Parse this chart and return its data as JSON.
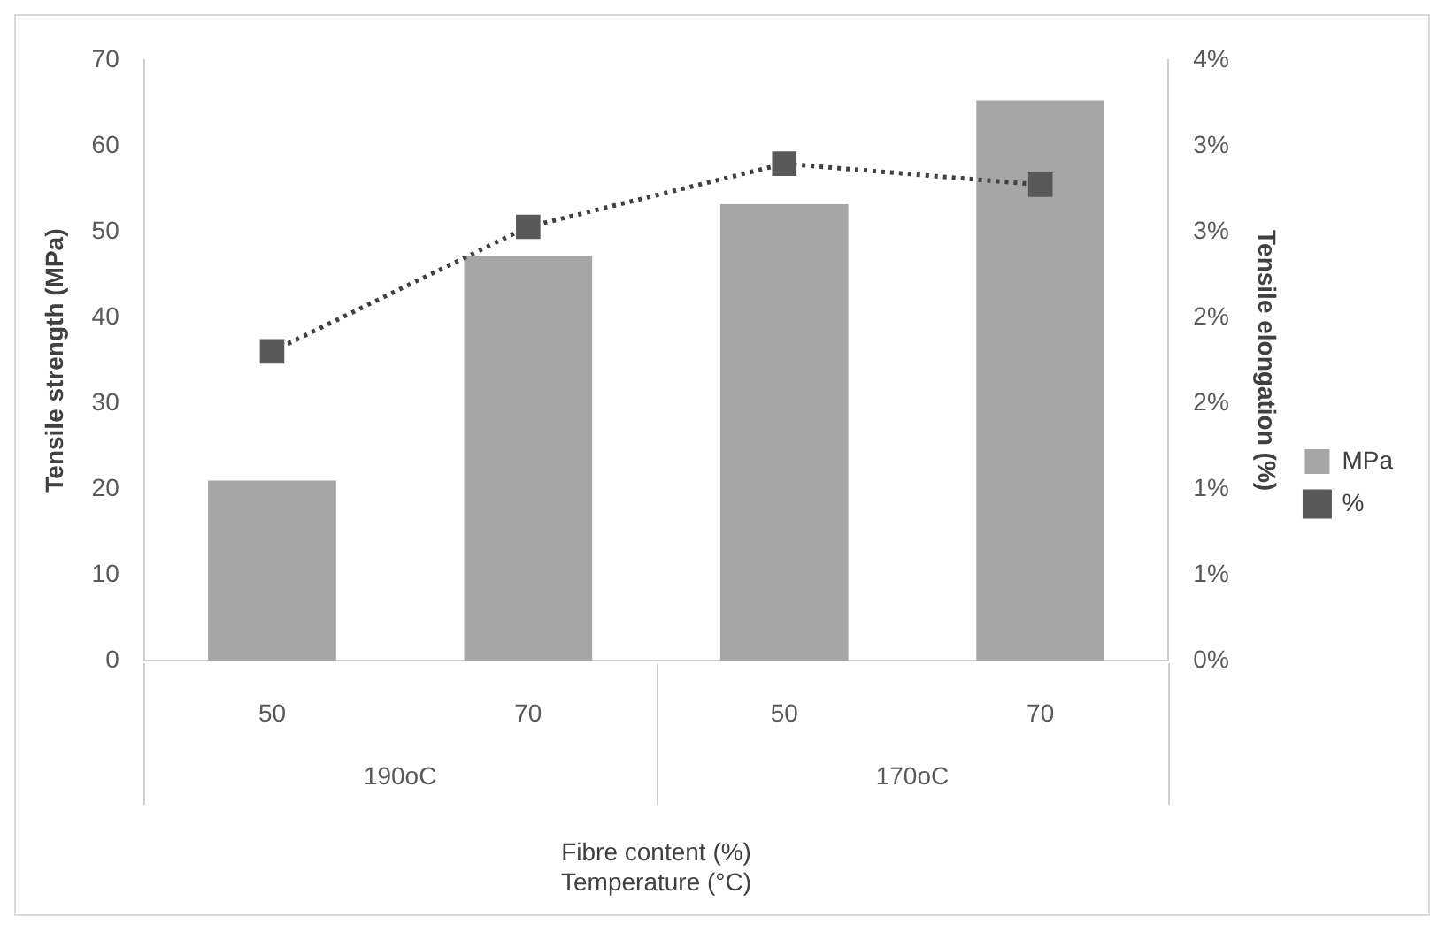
{
  "chart_data": {
    "type": "bar",
    "xlabel": "Fibre content (%)\nTemperature (°C)",
    "ylabel": "Tensile strength (MPa)",
    "y2label": "Tensile elongation (%)",
    "categories": [
      "50",
      "70",
      "50",
      "70"
    ],
    "annotations": [
      "190oC",
      "170oC"
    ],
    "series": [
      {
        "name": "MPa",
        "color": "#a6a6a6",
        "values": [
          21,
          47.2,
          53.2,
          65.3
        ]
      },
      {
        "name": "%",
        "type": "line",
        "axis": "y2",
        "color": "#595959",
        "marker": "square",
        "line_style": "dotted",
        "values": [
          2.06,
          2.89,
          3.31,
          3.17
        ]
      }
    ],
    "ylim": [
      0,
      70
    ],
    "yticks": [
      0,
      10,
      20,
      30,
      40,
      50,
      60,
      70
    ],
    "y2lim": [
      0,
      4
    ],
    "y2ticks": [
      {
        "value": 0,
        "label": "0%"
      },
      {
        "value": 0.5714,
        "label": "1%"
      },
      {
        "value": 1.1429,
        "label": "1%"
      },
      {
        "value": 1.7143,
        "label": "2%"
      },
      {
        "value": 2.2857,
        "label": "2%"
      },
      {
        "value": 2.8571,
        "label": "3%"
      },
      {
        "value": 3.4286,
        "label": "3%"
      },
      {
        "value": 4,
        "label": "4%"
      }
    ],
    "grid": false,
    "legend": "right"
  }
}
